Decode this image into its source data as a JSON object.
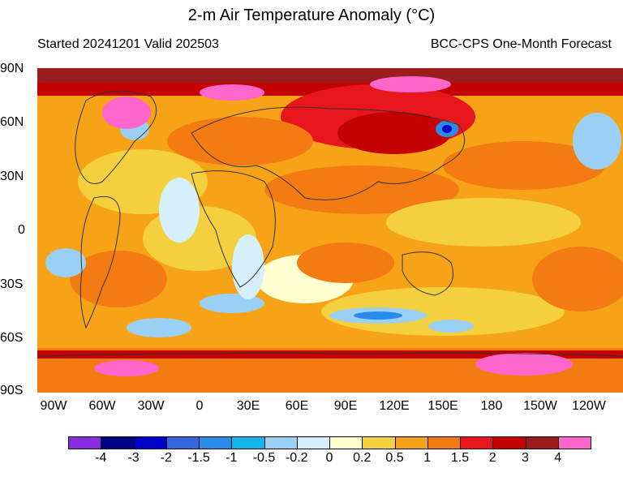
{
  "title": "2-m Air Temperature Anomaly (°C)",
  "subtitle_left": "Started 20241201  Valid 202503",
  "subtitle_right": "BCC-CPS One-Month Forecast",
  "lat_labels": [
    "90N",
    "60N",
    "30N",
    "0",
    "30S",
    "60S",
    "90S"
  ],
  "lon_labels": [
    "90W",
    "60W",
    "30W",
    "0",
    "30E",
    "60E",
    "90E",
    "120E",
    "150E",
    "180",
    "150W",
    "120W"
  ],
  "colorbar": {
    "labels": [
      "-4",
      "-3",
      "-2",
      "-1.5",
      "-1",
      "-0.5",
      "-0.2",
      "0",
      "0.2",
      "0.5",
      "1",
      "1.5",
      "2",
      "3",
      "4"
    ],
    "colors": [
      "#8a2be2",
      "#00008b",
      "#0000cd",
      "#3366dd",
      "#2a8ce8",
      "#12b6ea",
      "#9ad0f3",
      "#d6f0fb",
      "#ffffd0",
      "#f4d03f",
      "#f4a11a",
      "#f47a12",
      "#e8161c",
      "#c40000",
      "#9b1c1c",
      "#ff66cc"
    ]
  }
}
